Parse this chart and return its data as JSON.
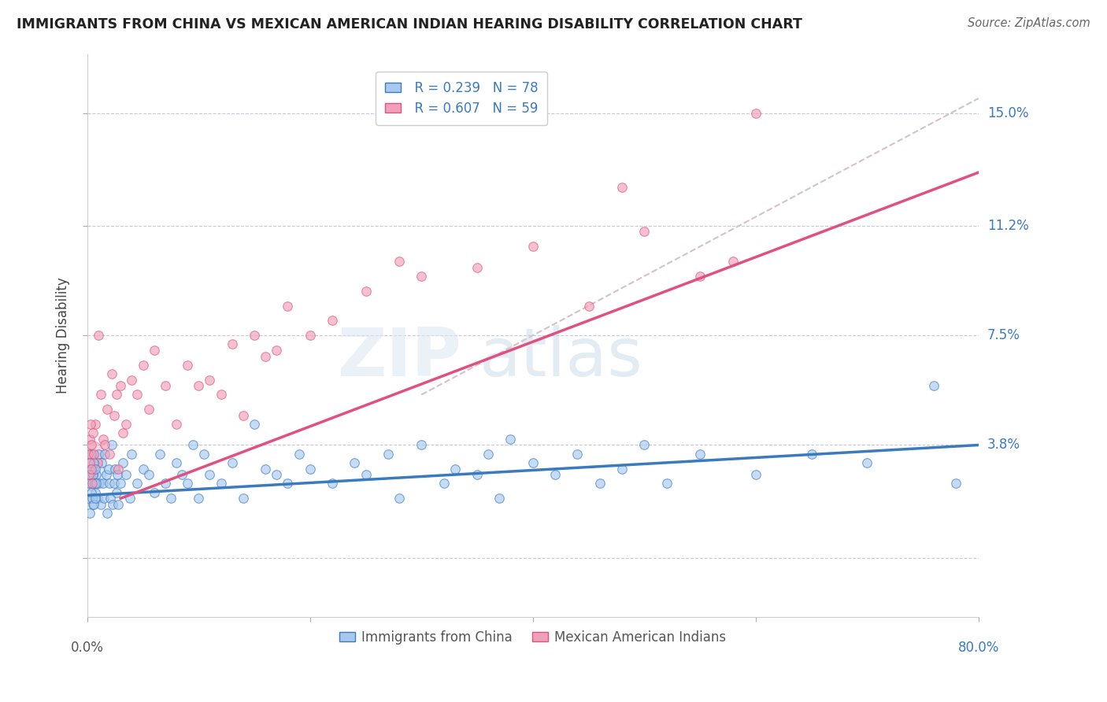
{
  "title": "IMMIGRANTS FROM CHINA VS MEXICAN AMERICAN INDIAN HEARING DISABILITY CORRELATION CHART",
  "source": "Source: ZipAtlas.com",
  "ylabel": "Hearing Disability",
  "xlim": [
    0.0,
    80.0
  ],
  "ylim": [
    -2.0,
    17.0
  ],
  "yticks": [
    0.0,
    3.8,
    7.5,
    11.2,
    15.0
  ],
  "ytick_labels": [
    "",
    "3.8%",
    "7.5%",
    "11.2%",
    "15.0%"
  ],
  "xticks": [
    0.0,
    20.0,
    40.0,
    60.0,
    80.0
  ],
  "legend_r1": "R = 0.239",
  "legend_n1": "N = 78",
  "legend_r2": "R = 0.607",
  "legend_n2": "N = 59",
  "china_color": "#a8c8f0",
  "china_color_line": "#3a7abf",
  "mexican_color": "#f0a0b8",
  "mexican_color_line": "#e05080",
  "diagonal_color": "#d8c0c8",
  "watermark_zip": "ZIP",
  "watermark_atlas": "atlas",
  "background": "#ffffff",
  "grid_color": "#c8c8d8",
  "china_line_x": [
    0.0,
    80.0
  ],
  "china_line_y": [
    2.1,
    3.8
  ],
  "mexican_line_x": [
    3.0,
    80.0
  ],
  "mexican_line_y": [
    2.0,
    13.0
  ],
  "diagonal_line_x": [
    30.0,
    80.0
  ],
  "diagonal_line_y": [
    5.5,
    15.5
  ],
  "china_scatter_x": [
    0.3,
    0.5,
    0.6,
    0.7,
    0.8,
    0.9,
    1.0,
    1.1,
    1.2,
    1.3,
    1.4,
    1.5,
    1.6,
    1.7,
    1.8,
    1.9,
    2.0,
    2.1,
    2.2,
    2.3,
    2.4,
    2.5,
    2.6,
    2.7,
    2.8,
    3.0,
    3.2,
    3.5,
    3.8,
    4.0,
    4.5,
    5.0,
    5.5,
    6.0,
    6.5,
    7.0,
    7.5,
    8.0,
    8.5,
    9.0,
    9.5,
    10.0,
    10.5,
    11.0,
    12.0,
    13.0,
    14.0,
    15.0,
    16.0,
    17.0,
    18.0,
    19.0,
    20.0,
    22.0,
    24.0,
    25.0,
    27.0,
    28.0,
    30.0,
    32.0,
    33.0,
    35.0,
    36.0,
    37.0,
    38.0,
    40.0,
    42.0,
    44.0,
    46.0,
    48.0,
    50.0,
    52.0,
    55.0,
    60.0,
    65.0,
    70.0,
    76.0,
    78.0
  ],
  "china_scatter_y": [
    2.5,
    1.8,
    3.0,
    2.2,
    2.8,
    2.0,
    3.5,
    2.5,
    1.8,
    3.2,
    2.5,
    2.0,
    3.5,
    2.8,
    1.5,
    3.0,
    2.5,
    2.0,
    3.8,
    1.8,
    2.5,
    3.0,
    2.2,
    2.8,
    1.8,
    2.5,
    3.2,
    2.8,
    2.0,
    3.5,
    2.5,
    3.0,
    2.8,
    2.2,
    3.5,
    2.5,
    2.0,
    3.2,
    2.8,
    2.5,
    3.8,
    2.0,
    3.5,
    2.8,
    2.5,
    3.2,
    2.0,
    4.5,
    3.0,
    2.8,
    2.5,
    3.5,
    3.0,
    2.5,
    3.2,
    2.8,
    3.5,
    2.0,
    3.8,
    2.5,
    3.0,
    2.8,
    3.5,
    2.0,
    4.0,
    3.2,
    2.8,
    3.5,
    2.5,
    3.0,
    3.8,
    2.5,
    3.5,
    2.8,
    3.5,
    3.2,
    5.8,
    2.5
  ],
  "mexican_scatter_x": [
    0.3,
    0.5,
    0.7,
    0.9,
    1.0,
    1.2,
    1.4,
    1.6,
    1.8,
    2.0,
    2.2,
    2.4,
    2.6,
    2.8,
    3.0,
    3.2,
    3.5,
    4.0,
    4.5,
    5.0,
    5.5,
    6.0,
    7.0,
    8.0,
    9.0,
    10.0,
    11.0,
    12.0,
    13.0,
    14.0,
    15.0,
    16.0,
    17.0,
    18.0,
    20.0,
    22.0,
    25.0,
    28.0,
    30.0,
    35.0,
    40.0,
    45.0,
    48.0,
    50.0,
    55.0,
    58.0,
    60.0
  ],
  "mexican_scatter_y": [
    3.5,
    2.8,
    4.5,
    3.2,
    7.5,
    5.5,
    4.0,
    3.8,
    5.0,
    3.5,
    6.2,
    4.8,
    5.5,
    3.0,
    5.8,
    4.2,
    4.5,
    6.0,
    5.5,
    6.5,
    5.0,
    7.0,
    5.8,
    4.5,
    6.5,
    5.8,
    6.0,
    5.5,
    7.2,
    4.8,
    7.5,
    6.8,
    7.0,
    8.5,
    7.5,
    8.0,
    9.0,
    10.0,
    9.5,
    9.8,
    10.5,
    8.5,
    12.5,
    11.0,
    9.5,
    10.0,
    15.0
  ],
  "china_big_cluster_x": [
    0.1,
    0.15,
    0.2,
    0.25,
    0.3,
    0.35,
    0.4,
    0.45,
    0.5,
    0.55,
    0.6,
    0.65,
    0.7,
    0.75,
    0.8
  ],
  "china_big_cluster_y": [
    2.0,
    2.5,
    1.5,
    3.0,
    2.8,
    2.2,
    3.5,
    2.0,
    2.8,
    1.8,
    3.2,
    2.5,
    2.0,
    3.0,
    2.5
  ],
  "mexican_big_cluster_x": [
    0.1,
    0.15,
    0.2,
    0.25,
    0.3,
    0.35,
    0.4,
    0.45,
    0.5,
    0.55
  ],
  "mexican_big_cluster_y": [
    3.5,
    2.8,
    4.0,
    3.2,
    4.5,
    3.0,
    3.8,
    2.5,
    4.2,
    3.5
  ],
  "china_large_dot_x": 0.2,
  "china_large_dot_y": 2.8,
  "china_large_dot_s": 800,
  "mexican_large_dot_x": 0.3,
  "mexican_large_dot_y": 3.5,
  "mexican_large_dot_s": 600
}
